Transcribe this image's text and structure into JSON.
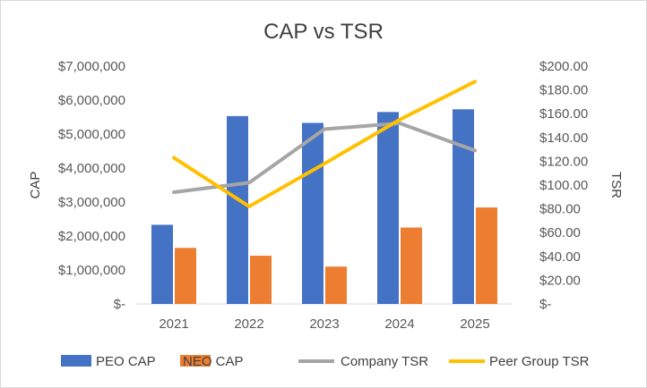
{
  "chart_data": {
    "type": "bar",
    "title": "CAP vs TSR",
    "categories": [
      "2021",
      "2022",
      "2023",
      "2024",
      "2025"
    ],
    "series": [
      {
        "name": "PEO CAP",
        "kind": "bar",
        "axis": "left",
        "color": "#4472C4",
        "values": [
          2330000,
          5530000,
          5330000,
          5650000,
          5730000
        ]
      },
      {
        "name": "NEO CAP",
        "kind": "bar",
        "axis": "left",
        "color": "#ED7D31",
        "values": [
          1650000,
          1420000,
          1100000,
          2250000,
          2840000
        ]
      },
      {
        "name": "Company TSR",
        "kind": "line",
        "axis": "right",
        "color": "#A5A5A5",
        "values": [
          94,
          102,
          147,
          152,
          129
        ]
      },
      {
        "name": "Peer Group TSR",
        "kind": "line",
        "axis": "right",
        "color": "#FFC000",
        "values": [
          123,
          82,
          118,
          155,
          187
        ]
      }
    ],
    "y_left": {
      "label": "CAP",
      "min": 0,
      "max": 7000000,
      "ticks": [
        "$-",
        "$1,000,000",
        "$2,000,000",
        "$3,000,000",
        "$4,000,000",
        "$5,000,000",
        "$6,000,000",
        "$7,000,000"
      ]
    },
    "y_right": {
      "label": "TSR",
      "min": 0,
      "max": 200,
      "ticks": [
        "$-",
        "$20.00",
        "$40.00",
        "$60.00",
        "$80.00",
        "$100.00",
        "$120.00",
        "$140.00",
        "$160.00",
        "$180.00",
        "$200.00"
      ]
    },
    "grid": false,
    "legend_position": "bottom"
  }
}
